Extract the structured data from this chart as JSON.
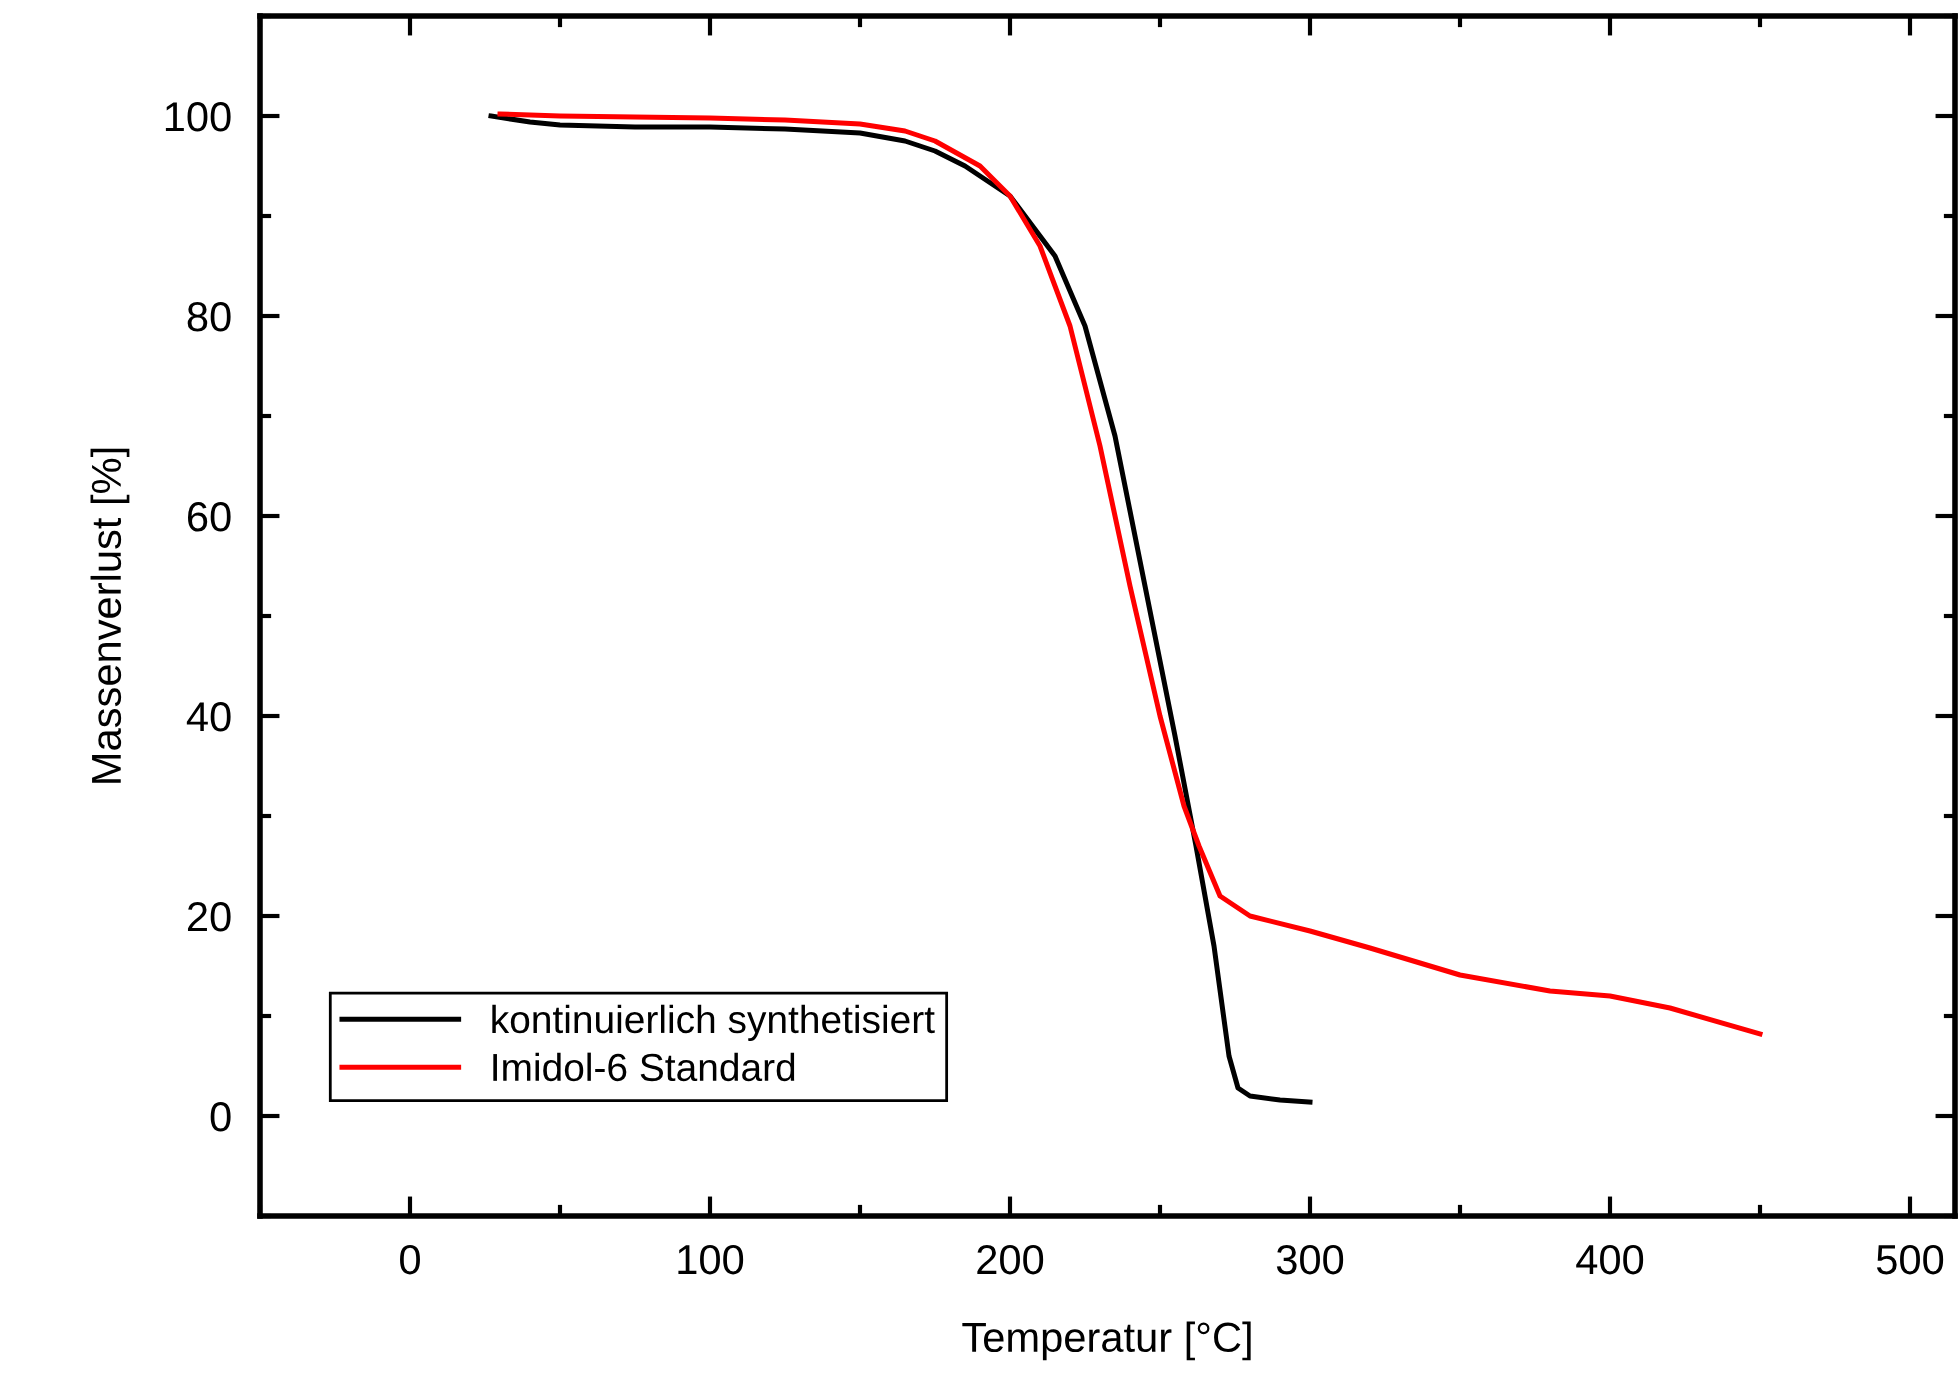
{
  "chart_data": {
    "type": "line",
    "xlabel": "Temperatur [°C]",
    "ylabel": "Massenverlust [%]",
    "xlim": [
      -50,
      515
    ],
    "ylim": [
      -10,
      110
    ],
    "xticks": [
      0,
      100,
      200,
      300,
      400,
      500
    ],
    "yticks": [
      0,
      20,
      40,
      60,
      80,
      100
    ],
    "grid": false,
    "legend": "bottom left",
    "marker": "none",
    "line_style": "solid",
    "series": [
      {
        "name": "kontinuierlich synthetisiert",
        "color": "#000000",
        "x": [
          27,
          40,
          50,
          75,
          100,
          125,
          150,
          165,
          175,
          185,
          200,
          215,
          225,
          235,
          245,
          255,
          262,
          268,
          273,
          276,
          280,
          290,
          300
        ],
        "values": [
          100,
          99.4,
          99.1,
          98.9,
          98.9,
          98.7,
          98.3,
          97.5,
          96.5,
          95,
          92,
          86,
          79,
          68,
          53,
          38,
          27,
          17,
          6,
          2.8,
          2.0,
          1.6,
          1.4
        ]
      },
      {
        "name": "Imidol-6 Standard",
        "color": "#ff0000",
        "x": [
          30,
          50,
          75,
          100,
          125,
          150,
          165,
          175,
          190,
          200,
          210,
          220,
          230,
          240,
          250,
          258,
          263,
          270,
          280,
          300,
          320,
          350,
          380,
          400,
          420,
          450
        ],
        "values": [
          100.2,
          100,
          99.9,
          99.8,
          99.6,
          99.2,
          98.5,
          97.5,
          95,
          92,
          87,
          79,
          67,
          53,
          40,
          31,
          27,
          22,
          20,
          18.5,
          16.8,
          14.1,
          12.5,
          12,
          10.8,
          8.2
        ]
      }
    ]
  }
}
